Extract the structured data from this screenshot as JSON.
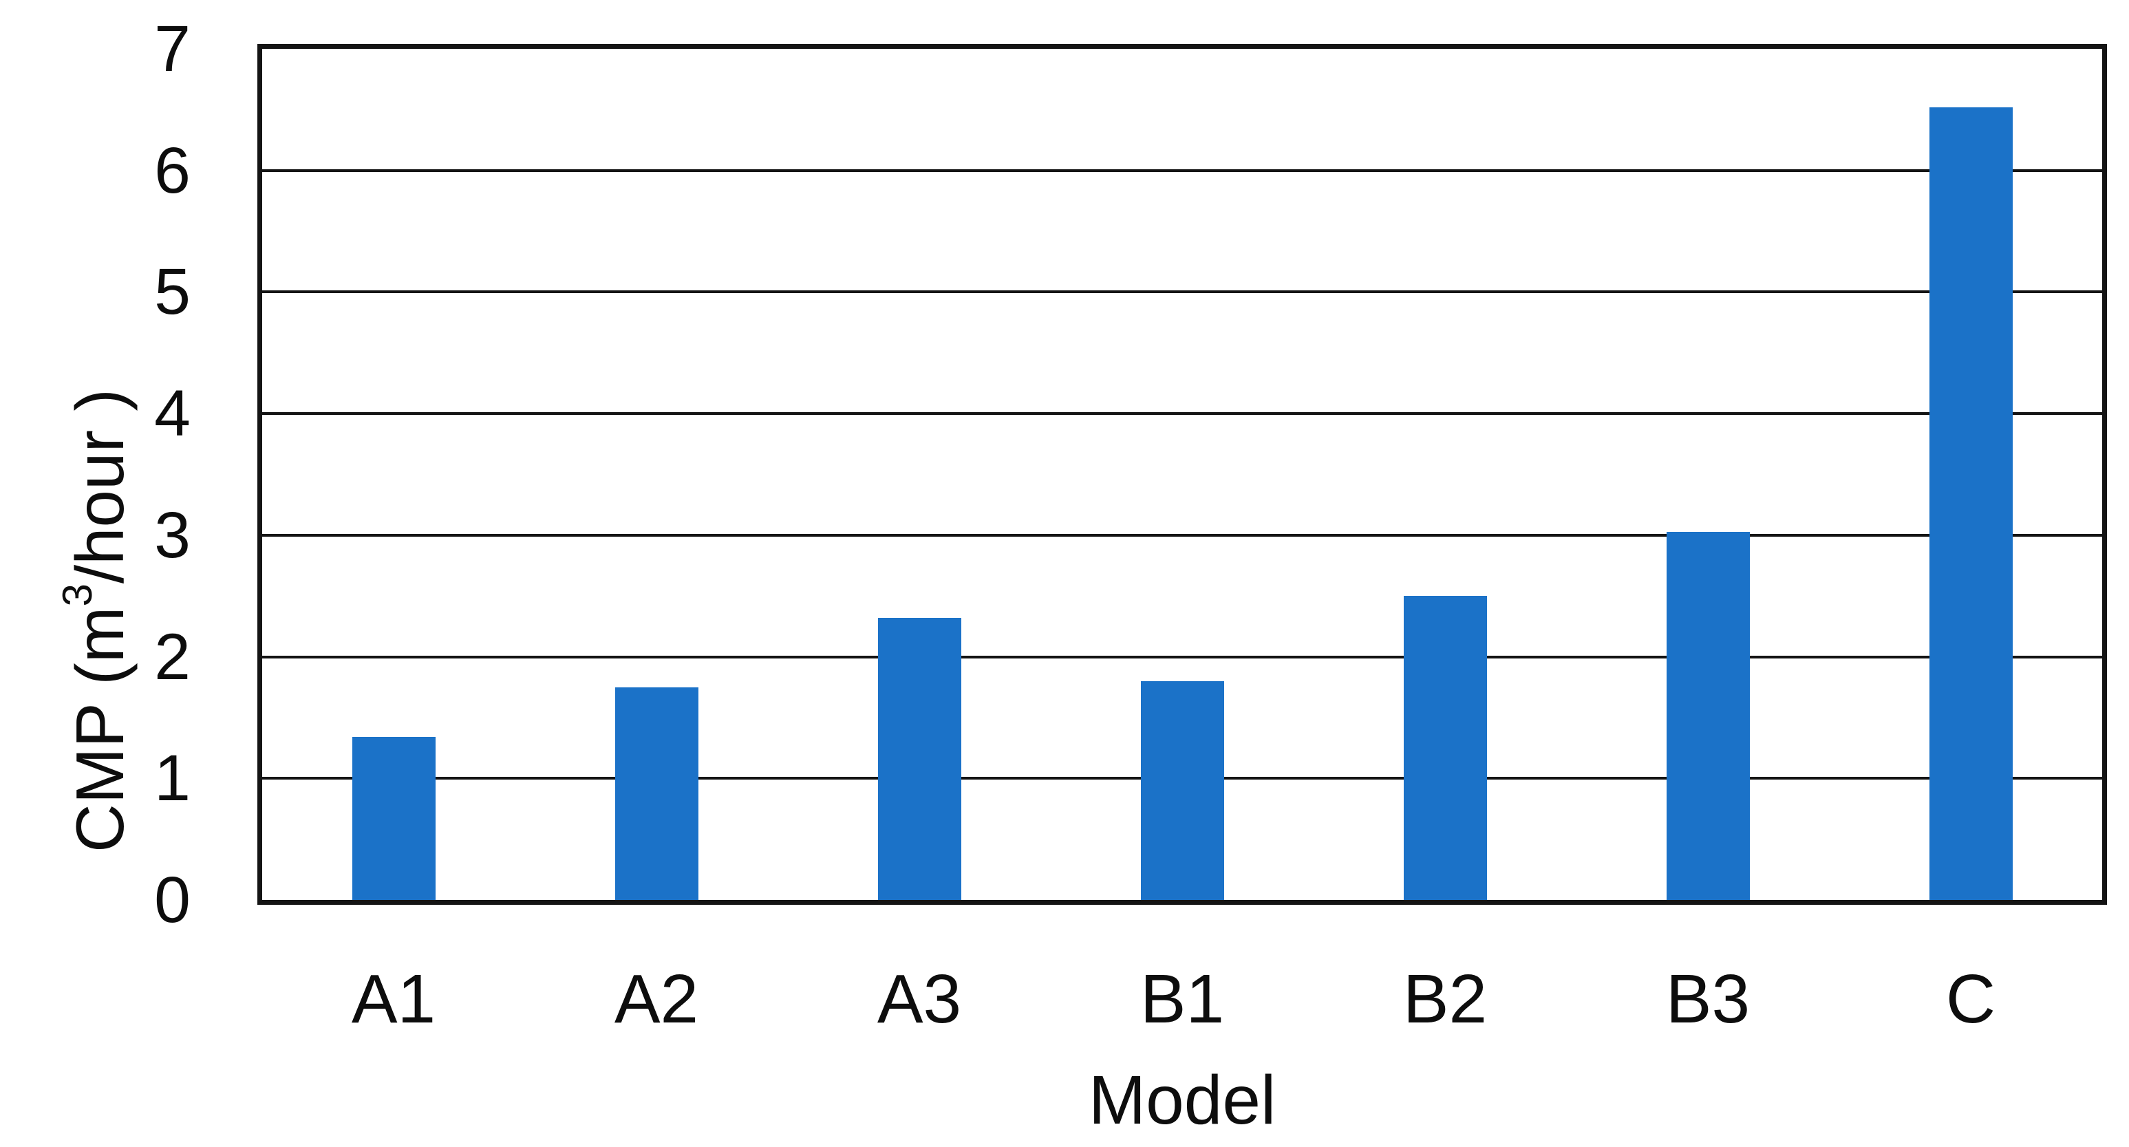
{
  "chart_data": {
    "type": "bar",
    "title": "",
    "categories": [
      "A1",
      "A2",
      "A3",
      "B1",
      "B2",
      "B3",
      "C"
    ],
    "values": [
      1.34,
      1.75,
      2.32,
      1.8,
      2.5,
      3.03,
      6.52
    ],
    "xlabel": "Model",
    "ylabel": "CMP (m³/hour )",
    "ylabel_parts": {
      "prefix": "CMP (m",
      "sup": "3",
      "suffix": "/hour )"
    },
    "ylim": [
      0,
      7
    ],
    "ytick_step": 1,
    "yticks": [
      "0",
      "1",
      "2",
      "3",
      "4",
      "5",
      "6",
      "7"
    ],
    "grid": "horizontal",
    "legend_position": "none",
    "bar_color": "#1B72C8",
    "line_color": "#141414",
    "background_color": "#FFFFFF"
  }
}
